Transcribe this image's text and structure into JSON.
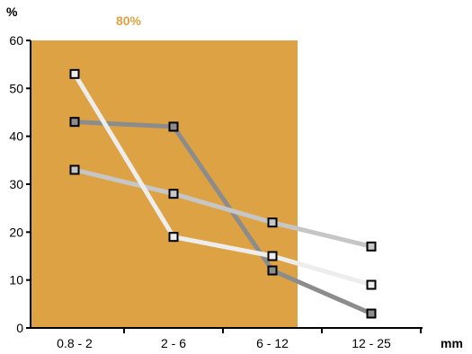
{
  "chart_data": {
    "type": "line",
    "categories": [
      "0.8 - 2",
      "2 - 6",
      "6 - 12",
      "12 - 25"
    ],
    "y_unit": "%",
    "x_unit": "mm",
    "ylim": [
      0,
      60
    ],
    "yticks": [
      0,
      10,
      20,
      30,
      40,
      50,
      60
    ],
    "grid": false,
    "legend": "none",
    "highlight": {
      "label": "80%",
      "from_category": 0,
      "to_position": 2.5,
      "color": "#DDA244"
    },
    "series": [
      {
        "values": [
          43,
          42,
          12,
          3
        ],
        "color": "#8C8C8C"
      },
      {
        "values": [
          33,
          28,
          22,
          17
        ],
        "color": "#C6C6C6"
      },
      {
        "values": [
          53,
          19,
          15,
          9
        ],
        "color": "#EDEDED"
      }
    ]
  }
}
